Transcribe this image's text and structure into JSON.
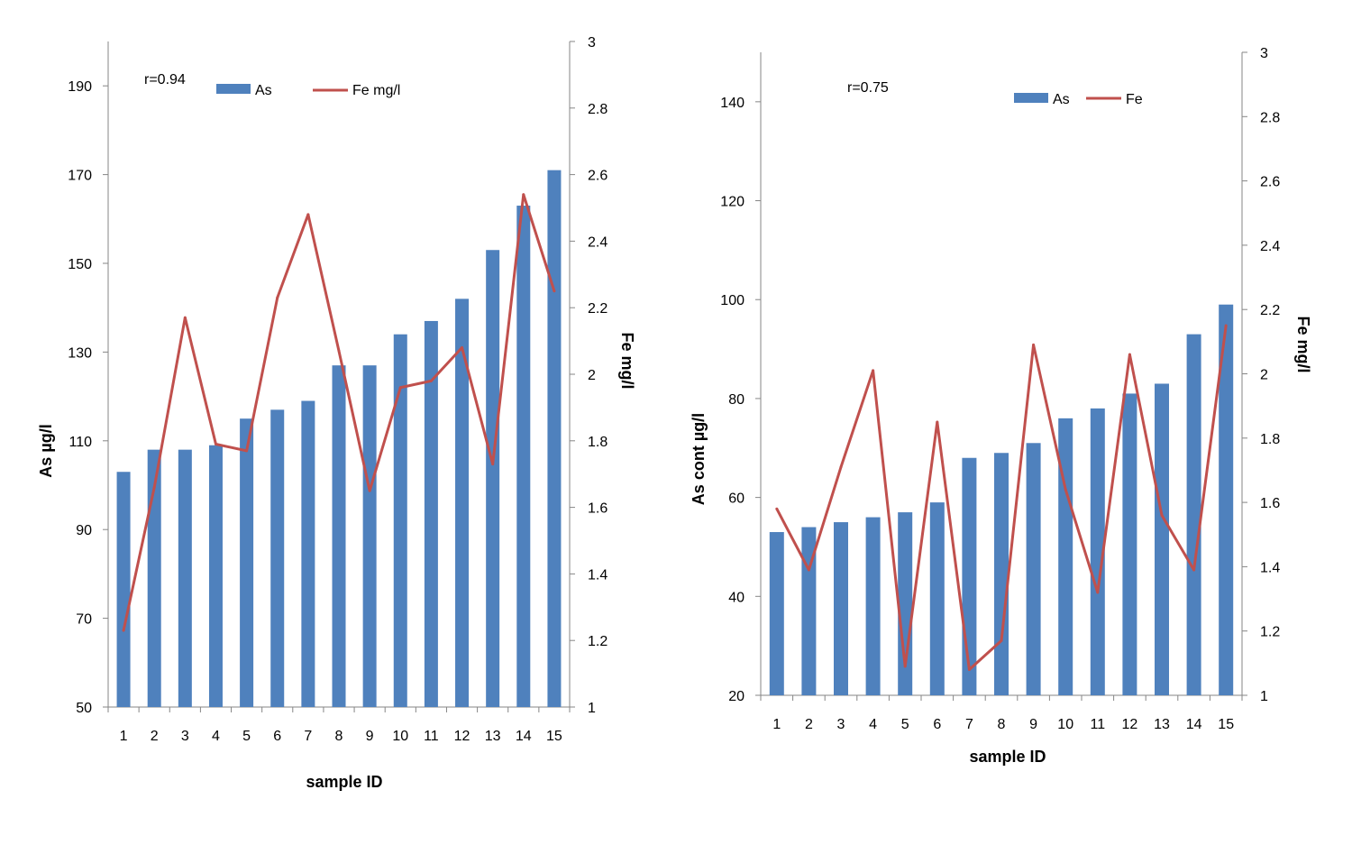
{
  "chart_data": [
    {
      "type": "bar",
      "categories": [
        "1",
        "2",
        "3",
        "4",
        "5",
        "6",
        "7",
        "8",
        "9",
        "10",
        "11",
        "12",
        "13",
        "14",
        "15"
      ],
      "series": [
        {
          "name": "As",
          "kind": "bar",
          "axis": "left",
          "color": "#4F81BD",
          "values": [
            103,
            108,
            108,
            109,
            115,
            117,
            119,
            127,
            127,
            134,
            137,
            142,
            153,
            163,
            171
          ]
        },
        {
          "name": "Fe mg/l",
          "kind": "line",
          "axis": "right",
          "color": "#C0504D",
          "values": [
            1.23,
            1.66,
            2.17,
            1.79,
            1.77,
            2.23,
            2.48,
            2.07,
            1.65,
            1.96,
            1.98,
            2.08,
            1.73,
            2.54,
            2.25
          ]
        }
      ],
      "xlabel": "sample ID",
      "ylabel": "As µg/l",
      "y2label": "Fe mg/l",
      "ylim": [
        50,
        200
      ],
      "yticks": [
        "50",
        "70",
        "90",
        "110",
        "130",
        "150",
        "170",
        "190"
      ],
      "y2lim": [
        1,
        3
      ],
      "y2ticks": [
        "1",
        "1.2",
        "1.4",
        "1.6",
        "1.8",
        "2",
        "2.2",
        "2.4",
        "2.6",
        "2.8",
        "3"
      ],
      "annotation": "r=0.94",
      "legend": "top",
      "grid": false
    },
    {
      "type": "bar",
      "categories": [
        "1",
        "2",
        "3",
        "4",
        "5",
        "6",
        "7",
        "8",
        "9",
        "10",
        "11",
        "12",
        "13",
        "14",
        "15"
      ],
      "series": [
        {
          "name": "As",
          "kind": "bar",
          "axis": "left",
          "color": "#4F81BD",
          "values": [
            53,
            54,
            55,
            56,
            57,
            59,
            68,
            69,
            71,
            76,
            78,
            81,
            83,
            93,
            99
          ]
        },
        {
          "name": "Fe",
          "kind": "line",
          "axis": "right",
          "color": "#C0504D",
          "values": [
            1.58,
            1.39,
            1.71,
            2.01,
            1.09,
            1.85,
            1.08,
            1.17,
            2.09,
            1.64,
            1.32,
            2.06,
            1.56,
            1.39,
            2.15
          ]
        }
      ],
      "xlabel": "sample ID",
      "ylabel": "As cont µg/l",
      "y2label": "Fe mg/l",
      "ylim": [
        20,
        150
      ],
      "yticks": [
        "20",
        "40",
        "60",
        "80",
        "100",
        "120",
        "140"
      ],
      "y2lim": [
        1,
        3
      ],
      "y2ticks": [
        "1",
        "1.2",
        "1.4",
        "1.6",
        "1.8",
        "2",
        "2.2",
        "2.4",
        "2.6",
        "2.8",
        "3"
      ],
      "annotation": "r=0.75",
      "legend": "top",
      "grid": false
    }
  ]
}
